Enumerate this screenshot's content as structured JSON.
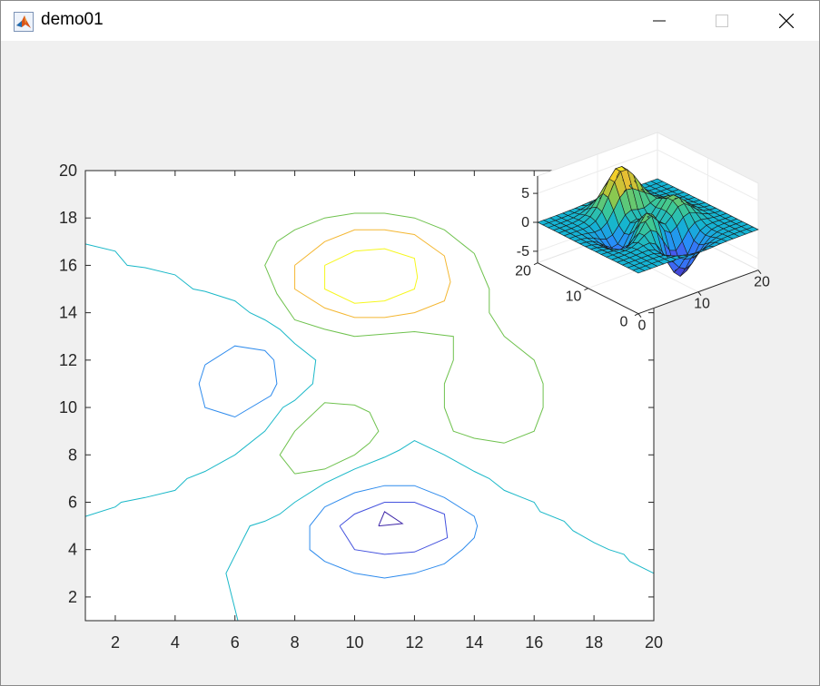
{
  "window": {
    "title": "demo01",
    "icon": "matlab-icon",
    "controls": [
      "minimize-icon",
      "maximize-icon",
      "close-icon"
    ]
  },
  "chart_data": [
    {
      "type": "contour",
      "xlim": [
        1,
        20
      ],
      "ylim": [
        1,
        20
      ],
      "x_ticks": [
        2,
        4,
        6,
        8,
        10,
        12,
        14,
        16,
        18,
        20
      ],
      "y_ticks": [
        2,
        4,
        6,
        8,
        10,
        12,
        14,
        16,
        18,
        20
      ],
      "colormap": "parula",
      "levels": [
        {
          "level": -5,
          "color": "#3e26a8"
        },
        {
          "level": -4,
          "color": "#4553de"
        },
        {
          "level": -2,
          "color": "#2e8bed"
        },
        {
          "level": 0,
          "color": "#1ab8c8"
        },
        {
          "level": 2,
          "color": "#6fc24e"
        },
        {
          "level": 4,
          "color": "#f4b732"
        },
        {
          "level": 6,
          "color": "#f6f71d"
        }
      ],
      "contours": [
        {
          "level": 0,
          "points": [
            [
              1,
              16.9
            ],
            [
              2,
              16.6
            ],
            [
              2.4,
              16
            ],
            [
              3,
              15.9
            ],
            [
              4,
              15.6
            ],
            [
              4.6,
              15
            ],
            [
              5,
              14.9
            ],
            [
              6,
              14.5
            ],
            [
              6.5,
              14
            ],
            [
              7,
              13.7
            ],
            [
              7.5,
              13.3
            ],
            [
              8,
              12.7
            ],
            [
              8.7,
              12
            ],
            [
              8.6,
              11
            ],
            [
              8,
              10.3
            ],
            [
              7.6,
              10
            ],
            [
              7,
              9
            ],
            [
              6,
              8
            ],
            [
              5,
              7.3
            ],
            [
              4.4,
              7
            ],
            [
              4,
              6.5
            ],
            [
              3,
              6.2
            ],
            [
              2.2,
              6
            ],
            [
              2,
              5.8
            ],
            [
              1,
              5.4
            ]
          ]
        },
        {
          "level": 0,
          "points": [
            [
              20,
              3
            ],
            [
              19.2,
              3.5
            ],
            [
              19,
              3.8
            ],
            [
              18.5,
              4
            ],
            [
              18,
              4.3
            ],
            [
              17.3,
              4.8
            ],
            [
              17,
              5.2
            ],
            [
              16.2,
              5.6
            ],
            [
              16,
              6
            ],
            [
              15.6,
              6.2
            ],
            [
              15,
              6.5
            ],
            [
              14.5,
              7
            ],
            [
              14,
              7.3
            ],
            [
              13,
              8
            ],
            [
              12.5,
              8.3
            ],
            [
              12,
              8.6
            ],
            [
              11.5,
              8.2
            ],
            [
              11,
              7.9
            ],
            [
              10,
              7.4
            ],
            [
              9,
              6.8
            ],
            [
              8,
              6
            ],
            [
              7.5,
              5.5
            ],
            [
              7,
              5.2
            ],
            [
              6.5,
              5
            ],
            [
              6.3,
              4.5
            ],
            [
              6.1,
              4
            ],
            [
              5.7,
              3
            ],
            [
              5.9,
              2
            ],
            [
              6.1,
              1
            ]
          ]
        },
        {
          "level": -2,
          "points": [
            [
              5,
              11.8
            ],
            [
              6,
              12.6
            ],
            [
              7,
              12.4
            ],
            [
              7.3,
              12
            ],
            [
              7.4,
              11
            ],
            [
              7.2,
              10.5
            ],
            [
              6,
              9.6
            ],
            [
              5,
              10
            ],
            [
              4.8,
              11
            ],
            [
              5,
              11.8
            ]
          ]
        },
        {
          "level": -2,
          "points": [
            [
              9,
              5.8
            ],
            [
              10,
              6.4
            ],
            [
              11,
              6.7
            ],
            [
              12,
              6.7
            ],
            [
              13,
              6.2
            ],
            [
              14,
              5.4
            ],
            [
              14.1,
              5
            ],
            [
              14,
              4.5
            ],
            [
              13.6,
              4
            ],
            [
              13,
              3.4
            ],
            [
              12,
              3
            ],
            [
              11,
              2.8
            ],
            [
              10,
              3
            ],
            [
              9,
              3.5
            ],
            [
              8.5,
              4
            ],
            [
              8.5,
              5
            ],
            [
              9,
              5.8
            ]
          ]
        },
        {
          "level": -4,
          "points": [
            [
              9.5,
              5
            ],
            [
              10,
              5.5
            ],
            [
              11,
              6
            ],
            [
              12,
              6
            ],
            [
              13,
              5.5
            ],
            [
              13.1,
              4.5
            ],
            [
              12,
              3.9
            ],
            [
              11,
              3.8
            ],
            [
              10,
              4
            ],
            [
              9.5,
              5
            ]
          ]
        },
        {
          "level": -5,
          "points": [
            [
              10.8,
              5
            ],
            [
              11,
              5.6
            ],
            [
              11.6,
              5.1
            ],
            [
              10.8,
              5
            ]
          ]
        },
        {
          "level": 2,
          "points": [
            [
              8,
              7.2
            ],
            [
              9,
              7.4
            ],
            [
              10,
              8
            ],
            [
              10.5,
              8.5
            ],
            [
              10.8,
              9
            ],
            [
              10.5,
              9.8
            ],
            [
              10,
              10.1
            ],
            [
              9,
              10.2
            ],
            [
              8,
              9
            ],
            [
              7.5,
              8
            ],
            [
              8,
              7.2
            ]
          ]
        },
        {
          "level": 2,
          "points": [
            [
              15,
              8.5
            ],
            [
              14,
              8.7
            ],
            [
              13.3,
              9
            ],
            [
              13,
              10
            ],
            [
              13,
              11
            ],
            [
              13.3,
              12
            ],
            [
              13.3,
              13
            ],
            [
              12,
              13.2
            ],
            [
              11,
              13.1
            ],
            [
              10,
              13
            ],
            [
              9,
              13.3
            ],
            [
              8,
              13.7
            ],
            [
              7.4,
              14.8
            ],
            [
              7,
              16
            ],
            [
              7.4,
              17
            ],
            [
              8,
              17.5
            ],
            [
              9,
              18
            ],
            [
              10,
              18.2
            ],
            [
              11,
              18.2
            ],
            [
              12,
              18
            ],
            [
              13,
              17.5
            ],
            [
              14,
              16.5
            ],
            [
              14.5,
              15
            ],
            [
              14.5,
              14
            ],
            [
              15,
              13
            ],
            [
              16,
              12
            ],
            [
              16.3,
              11
            ],
            [
              16.3,
              10
            ],
            [
              16,
              9
            ],
            [
              15,
              8.5
            ]
          ]
        },
        {
          "level": 4,
          "points": [
            [
              8,
              16
            ],
            [
              9,
              17
            ],
            [
              10,
              17.5
            ],
            [
              11,
              17.5
            ],
            [
              12,
              17.3
            ],
            [
              13,
              16.4
            ],
            [
              13.2,
              15.3
            ],
            [
              13,
              14.5
            ],
            [
              12,
              14
            ],
            [
              11,
              13.8
            ],
            [
              10,
              13.8
            ],
            [
              9,
              14.2
            ],
            [
              8,
              15
            ],
            [
              8,
              16
            ]
          ]
        },
        {
          "level": 6,
          "points": [
            [
              9,
              16
            ],
            [
              10,
              16.6
            ],
            [
              11,
              16.7
            ],
            [
              12,
              16.3
            ],
            [
              12.1,
              15.5
            ],
            [
              12,
              15
            ],
            [
              11,
              14.5
            ],
            [
              10,
              14.4
            ],
            [
              9,
              15
            ],
            [
              9,
              16
            ]
          ]
        }
      ]
    },
    {
      "type": "surface",
      "x_ticks": [
        0,
        10,
        20
      ],
      "y_ticks": [
        0,
        10,
        20
      ],
      "z_ticks": [
        -5,
        0,
        5
      ],
      "zlim": [
        -7,
        8
      ],
      "function": "peaks",
      "grid_size": 20
    }
  ]
}
